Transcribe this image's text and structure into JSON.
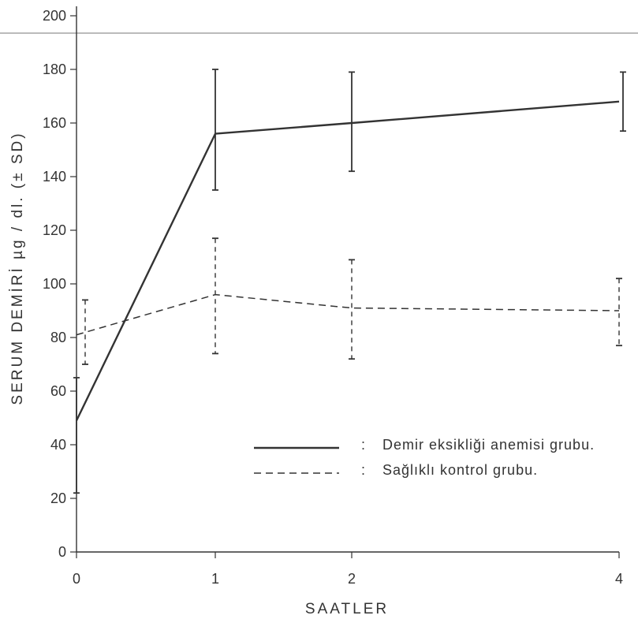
{
  "chart_data": {
    "type": "line",
    "xlabel": "SAATLER",
    "ylabel": "SERUM DEMİRİ µg / dl. (± SD)",
    "ylim": [
      0,
      200
    ],
    "yticks": [
      0,
      20,
      40,
      60,
      80,
      100,
      120,
      140,
      160,
      180,
      200
    ],
    "x_categories": [
      "0",
      "1",
      "2",
      "4"
    ],
    "x_scale": "linear-with-break",
    "legend": {
      "placement": "lower-right"
    },
    "grid": false,
    "series": [
      {
        "name": "Demir eksikliği anemisi grubu.",
        "style": "solid",
        "color": "#333333",
        "x": [
          0,
          1,
          2,
          4
        ],
        "y": [
          49,
          156,
          160,
          168
        ],
        "err_low": [
          22,
          135,
          142,
          157
        ],
        "err_high": [
          65,
          180,
          179,
          179
        ]
      },
      {
        "name": "Sağlıklı kontrol grubu.",
        "style": "dashed",
        "color": "#333333",
        "x": [
          0,
          1,
          2,
          4
        ],
        "y": [
          81,
          96,
          91,
          90
        ],
        "err_low": [
          70,
          74,
          72,
          77
        ],
        "err_high": [
          94,
          117,
          109,
          102
        ]
      }
    ],
    "legend_separator": ":"
  }
}
